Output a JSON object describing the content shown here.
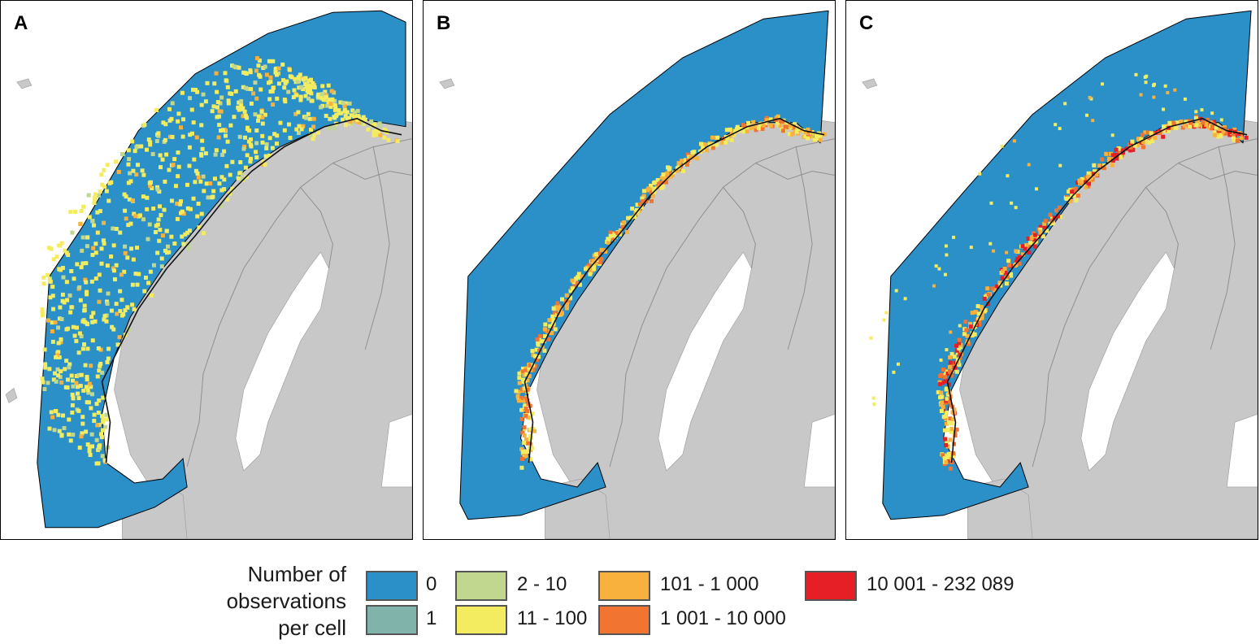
{
  "panels": [
    {
      "letter": "A"
    },
    {
      "letter": "B"
    },
    {
      "letter": "C"
    }
  ],
  "legend": {
    "title_lines": [
      "Number of",
      "observations",
      "per cell"
    ],
    "classes": [
      {
        "label": "0",
        "color": "#2b8fc8"
      },
      {
        "label": "1",
        "color": "#80b4aa"
      },
      {
        "label": "2 - 10",
        "color": "#c1d68e"
      },
      {
        "label": "11 - 100",
        "color": "#f3ec61"
      },
      {
        "label": "101 - 1 000",
        "color": "#f8b13c"
      },
      {
        "label": "1 001 - 10 000",
        "color": "#f17430"
      },
      {
        "label": "10 001 - 232 089",
        "color": "#e61e26"
      }
    ]
  },
  "colors": {
    "land": "#c8c8c8",
    "sea": "#ffffff",
    "border": "#8f8f8f",
    "coast_line": "#111111"
  }
}
